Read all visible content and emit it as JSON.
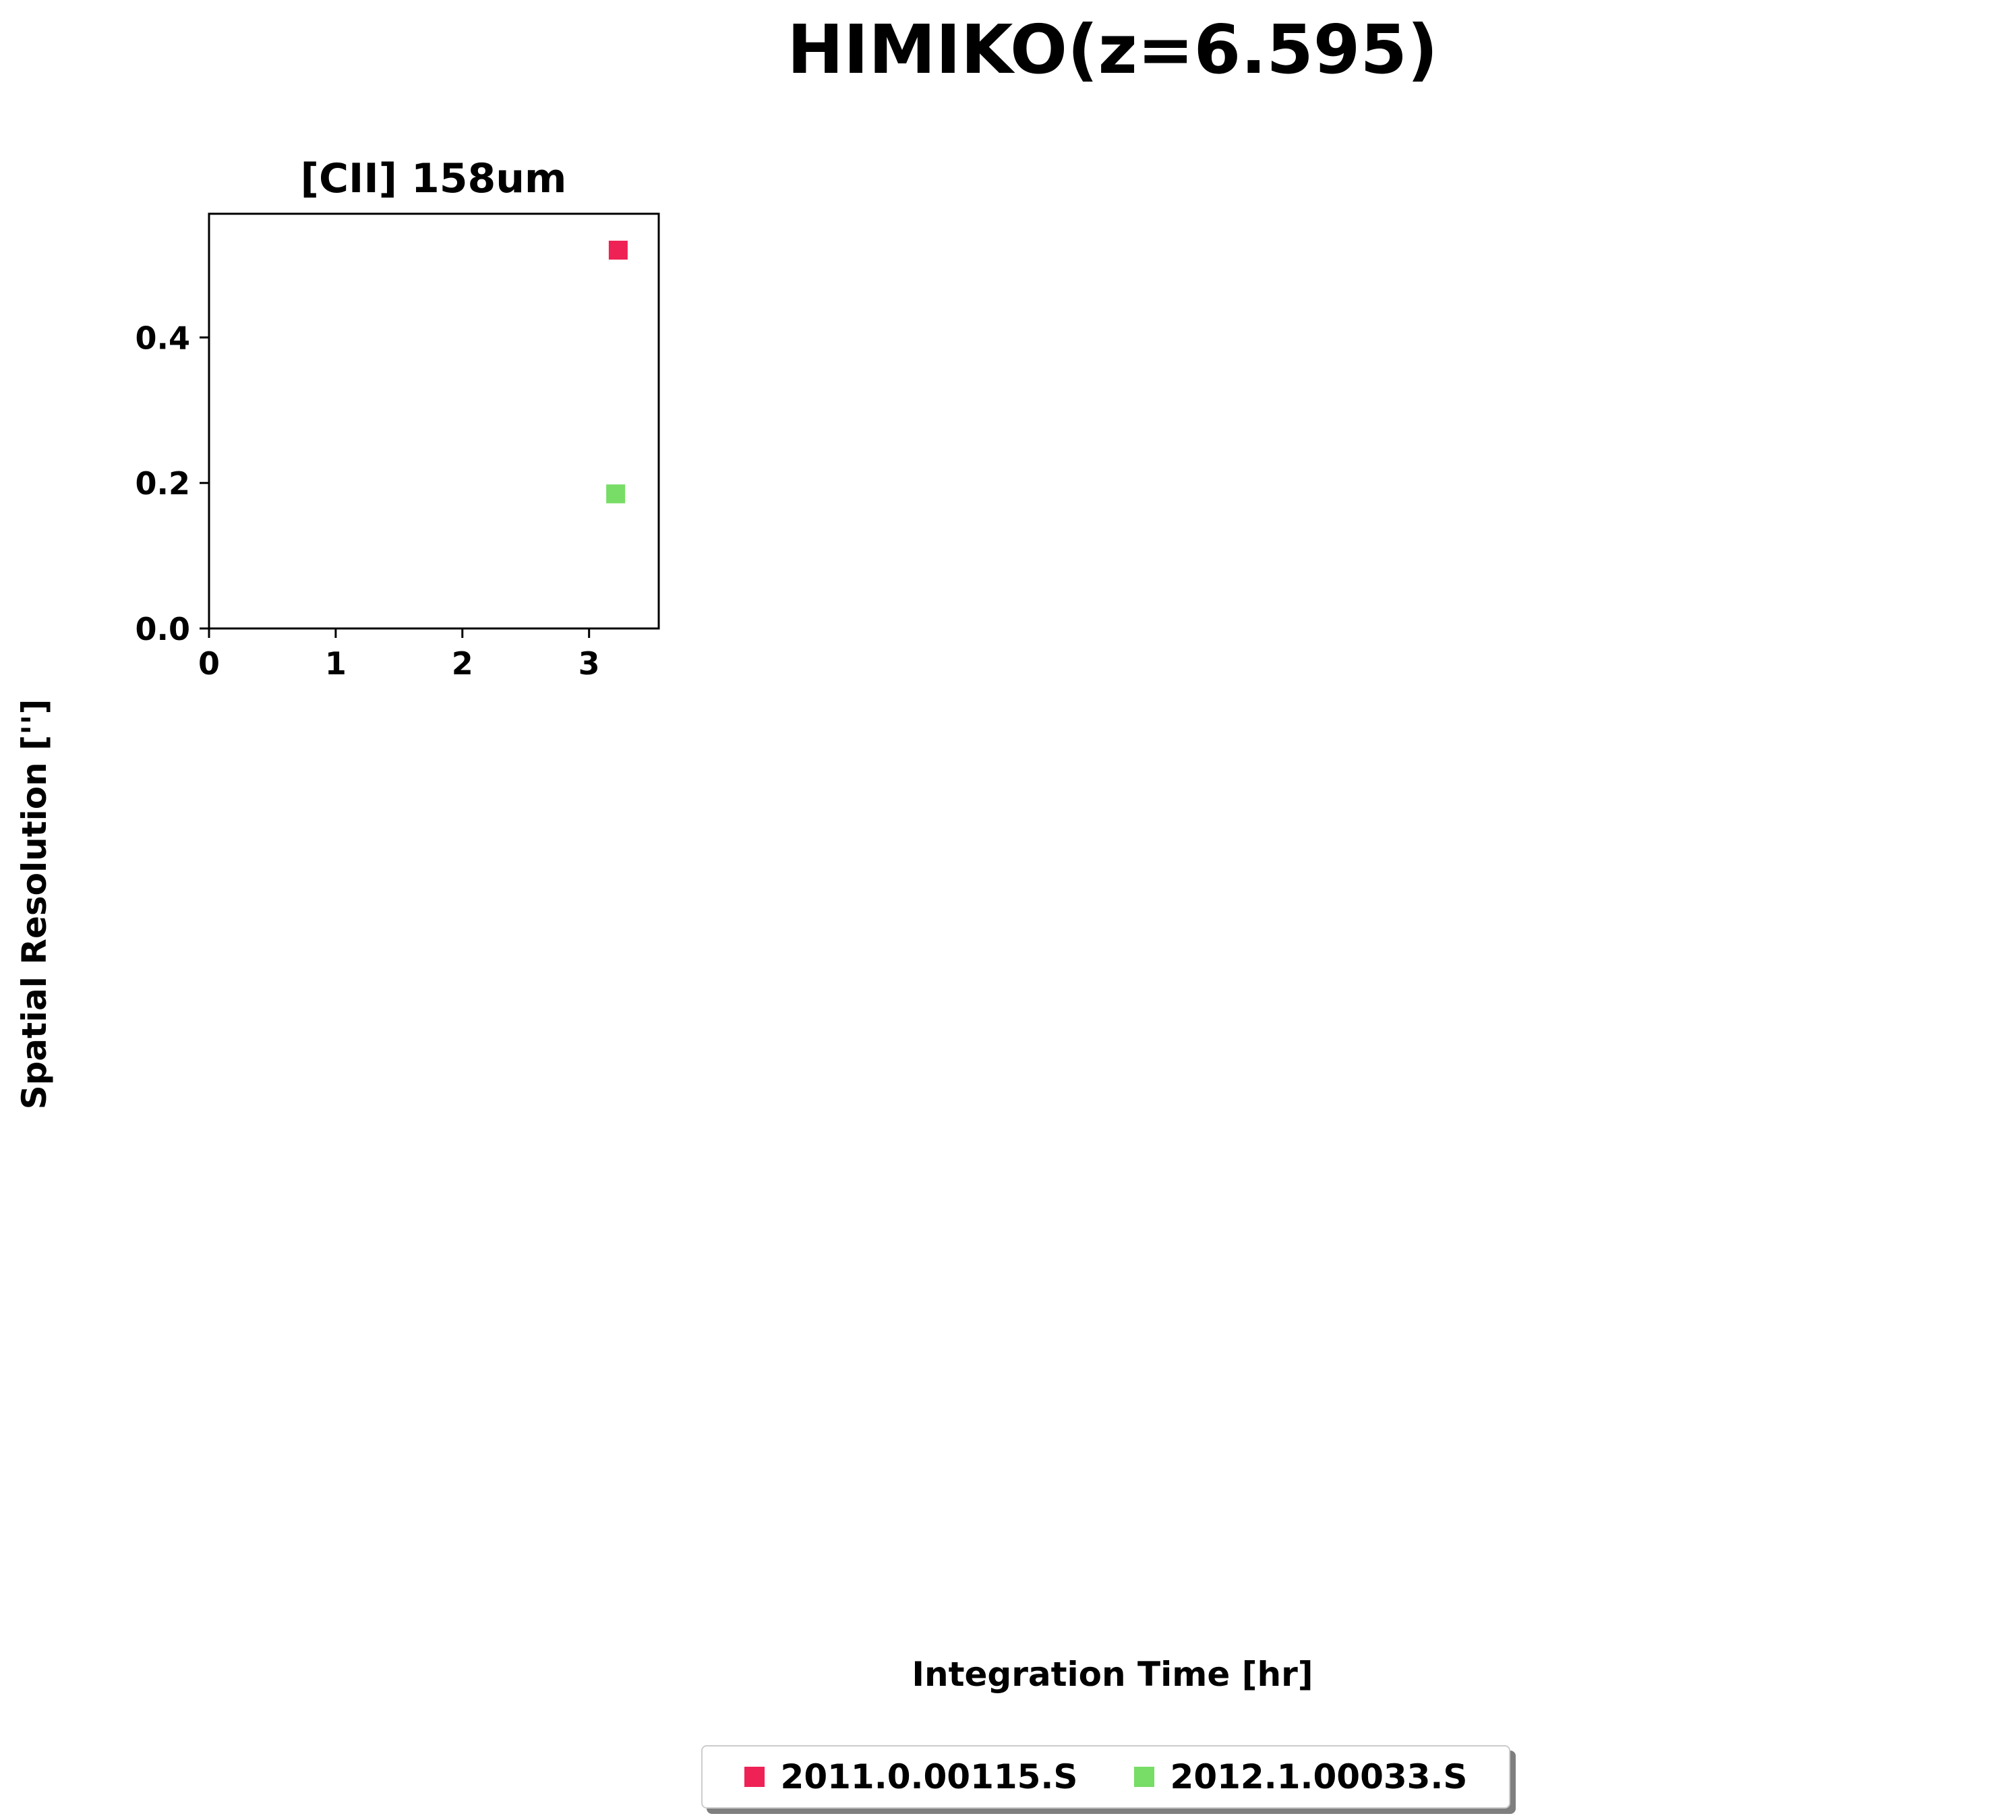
{
  "figure": {
    "title": "HIMIKO(z=6.595)",
    "xlabel": "Integration Time [hr]",
    "ylabel": "Spatial Resolution ['']"
  },
  "chart_data": {
    "type": "scatter",
    "title": "[CII] 158um",
    "xlabel": "Integration Time [hr]",
    "ylabel": "Spatial Resolution ['']",
    "xlim": [
      0,
      3.55
    ],
    "ylim": [
      0,
      0.57
    ],
    "xticks": [
      0,
      1,
      2,
      3
    ],
    "xtick_labels": [
      "0",
      "1",
      "2",
      "3"
    ],
    "yticks": [
      0.0,
      0.2,
      0.4
    ],
    "ytick_labels": [
      "0.0",
      "0.2",
      "0.4"
    ],
    "grid": false,
    "legend_placement": "bottom-center",
    "series": [
      {
        "name": "2011.0.00115.S",
        "color": "#ee2255",
        "marker": "square",
        "x": [
          3.23
        ],
        "y": [
          0.52
        ]
      },
      {
        "name": "2012.1.00033.S",
        "color": "#77dd66",
        "marker": "square",
        "x": [
          3.21
        ],
        "y": [
          0.185
        ]
      }
    ]
  }
}
